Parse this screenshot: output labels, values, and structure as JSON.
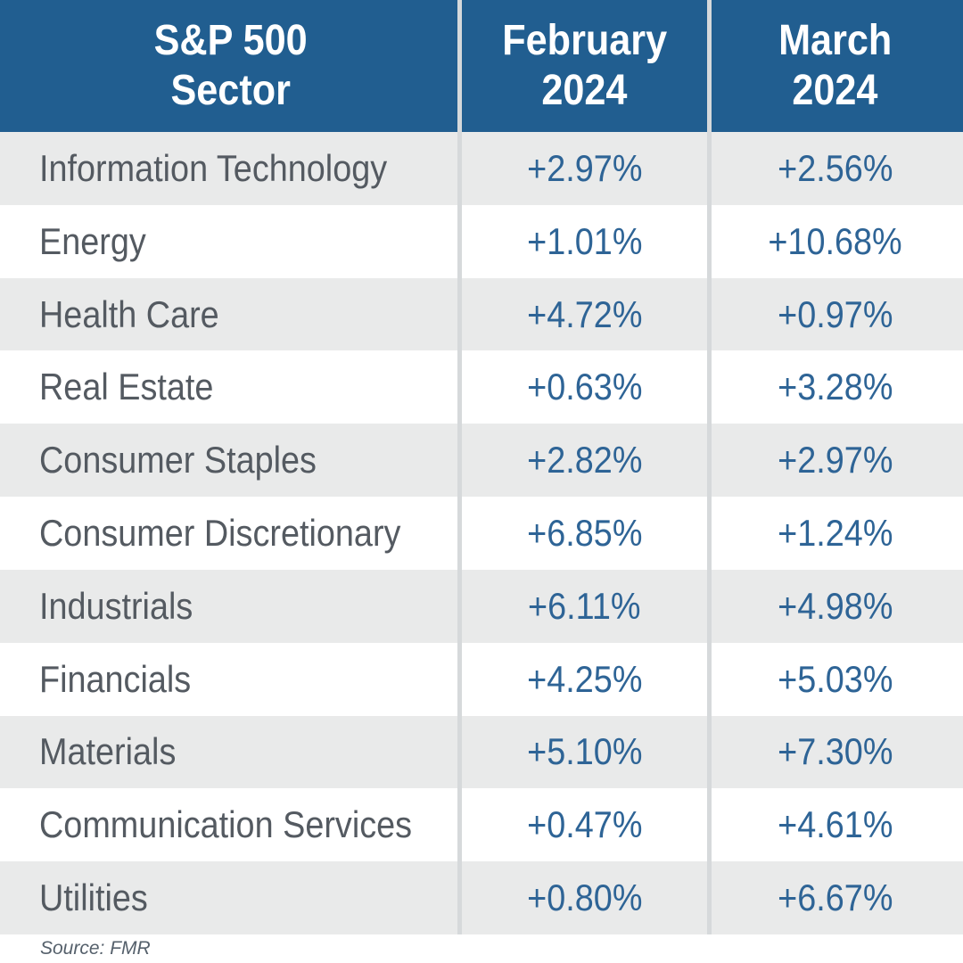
{
  "header": {
    "sector_col": {
      "line1": "S&P 500",
      "line2": "Sector"
    },
    "feb_col": {
      "line1": "February",
      "line2": "2024"
    },
    "mar_col": {
      "line1": "March",
      "line2": "2024"
    }
  },
  "rows": [
    {
      "sector": "Information Technology",
      "feb": "+2.97%",
      "mar": "+2.56%"
    },
    {
      "sector": "Energy",
      "feb": "+1.01%",
      "mar": "+10.68%"
    },
    {
      "sector": "Health Care",
      "feb": "+4.72%",
      "mar": "+0.97%"
    },
    {
      "sector": "Real Estate",
      "feb": "+0.63%",
      "mar": "+3.28%"
    },
    {
      "sector": "Consumer Staples",
      "feb": "+2.82%",
      "mar": "+2.97%"
    },
    {
      "sector": "Consumer Discretionary",
      "feb": "+6.85%",
      "mar": "+1.24%"
    },
    {
      "sector": "Industrials",
      "feb": "+6.11%",
      "mar": "+4.98%"
    },
    {
      "sector": "Financials",
      "feb": "+4.25%",
      "mar": "+5.03%"
    },
    {
      "sector": "Materials",
      "feb": "+5.10%",
      "mar": "+7.30%"
    },
    {
      "sector": "Communication Services",
      "feb": "+0.47%",
      "mar": "+4.61%"
    },
    {
      "sector": "Utilities",
      "feb": "+0.80%",
      "mar": "+6.67%"
    }
  ],
  "footer": {
    "source_note": "Source: FMR"
  },
  "colors": {
    "header_bg": "#215E90",
    "header_text": "#FFFFFF",
    "sector_text": "#545A61",
    "value_text": "#2E6496",
    "row_alt_bg": "#E9EAEA",
    "row_bg": "#FFFFFF",
    "divider": "#D6D9DB",
    "source_text": "#55606B"
  },
  "chart_data": {
    "type": "table",
    "columns": [
      "S&P 500 Sector",
      "February 2024",
      "March 2024"
    ],
    "categories": [
      "Information Technology",
      "Energy",
      "Health Care",
      "Real Estate",
      "Consumer Staples",
      "Consumer Discretionary",
      "Industrials",
      "Financials",
      "Materials",
      "Communication Services",
      "Utilities"
    ],
    "series": [
      {
        "name": "February 2024",
        "values": [
          2.97,
          1.01,
          4.72,
          0.63,
          2.82,
          6.85,
          6.11,
          4.25,
          5.1,
          0.47,
          0.8
        ]
      },
      {
        "name": "March 2024",
        "values": [
          2.56,
          10.68,
          0.97,
          3.28,
          2.97,
          1.24,
          4.98,
          5.03,
          7.3,
          4.61,
          6.67
        ]
      }
    ],
    "unit": "%",
    "source": "Source: FMR",
    "layout": "striped rows, blue header band, light-gray vertical column dividers"
  }
}
